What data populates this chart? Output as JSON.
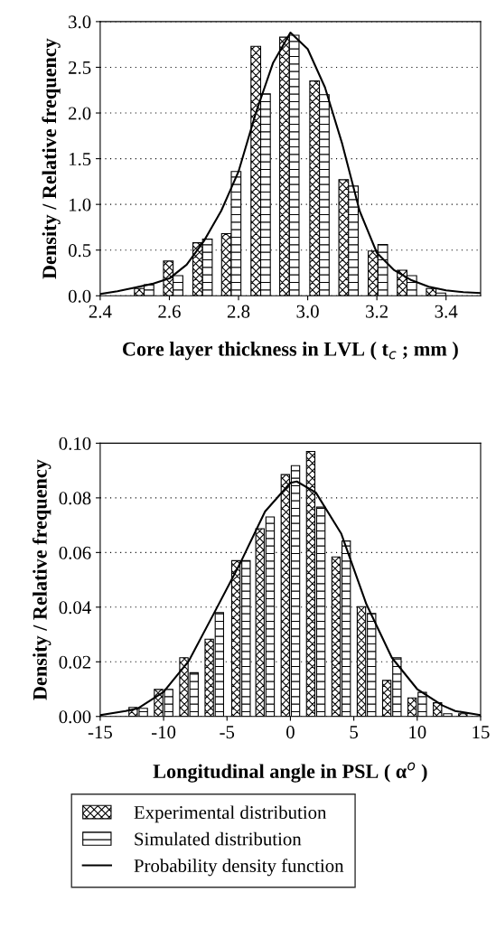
{
  "chart_data": [
    {
      "type": "bar",
      "xlabel": "Core layer thickness in LVL ( t$_{c}$ ; mm )",
      "ylabel": "Density / Relative frequency",
      "xlim": [
        2.4,
        3.5
      ],
      "xticks": [
        {
          "value": 2.4,
          "label": "2.4"
        },
        {
          "value": 2.6,
          "label": "2.6"
        },
        {
          "value": 2.8,
          "label": "2.8"
        },
        {
          "value": 3.0,
          "label": "3.0"
        },
        {
          "value": 3.2,
          "label": "3.2"
        },
        {
          "value": 3.4,
          "label": "3.4"
        }
      ],
      "ylim": [
        0,
        3.0
      ],
      "yticks": [
        {
          "value": 0,
          "label": "0.0"
        },
        {
          "value": 0.5,
          "label": "0.5"
        },
        {
          "value": 1.0,
          "label": "1.0"
        },
        {
          "value": 1.5,
          "label": "1.5"
        },
        {
          "value": 2.0,
          "label": "2.0"
        },
        {
          "value": 2.5,
          "label": "2.5"
        },
        {
          "value": 3.0,
          "label": "3.0"
        }
      ],
      "grid": "y",
      "series": [
        {
          "color": "#000000",
          "x": [
            2.513,
            2.597,
            2.682,
            2.765,
            2.85,
            2.933,
            3.02,
            3.104,
            3.189,
            3.273,
            3.357
          ],
          "values": [
            0.08,
            0.38,
            0.58,
            0.68,
            2.73,
            2.83,
            2.35,
            1.27,
            0.49,
            0.28,
            0.08
          ]
        },
        {
          "color": "#000000",
          "x": [
            2.541,
            2.625,
            2.71,
            2.793,
            2.878,
            2.961,
            3.048,
            3.132,
            3.217,
            3.301,
            3.385
          ],
          "values": [
            0.12,
            0.22,
            0.62,
            1.36,
            2.21,
            2.85,
            2.2,
            1.2,
            0.56,
            0.22,
            0.03
          ]
        },
        {
          "type": "line",
          "color": "#000000",
          "x": [
            2.4,
            2.45,
            2.5,
            2.55,
            2.6,
            2.65,
            2.7,
            2.75,
            2.8,
            2.85,
            2.9,
            2.95,
            3.0,
            3.05,
            3.1,
            3.15,
            3.2,
            3.25,
            3.3,
            3.35,
            3.4,
            3.45,
            3.5
          ],
          "values": [
            0.02,
            0.05,
            0.09,
            0.13,
            0.19,
            0.34,
            0.6,
            0.93,
            1.36,
            2.0,
            2.55,
            2.88,
            2.7,
            2.28,
            1.66,
            0.93,
            0.47,
            0.28,
            0.17,
            0.1,
            0.06,
            0.04,
            0.03
          ]
        }
      ]
    },
    {
      "type": "bar",
      "xlabel": "Longitudinal angle in PSL ( α$^{o}$ )",
      "ylabel": "Density / Relative frequency",
      "xlim": [
        -15,
        15
      ],
      "xticks": [
        -15,
        -10,
        -5,
        0,
        5,
        10,
        15
      ],
      "ylim": [
        0,
        0.1
      ],
      "yticks": [
        {
          "value": 0,
          "label": "0.00"
        },
        {
          "value": 0.02,
          "label": "0.02"
        },
        {
          "value": 0.04,
          "label": "0.04"
        },
        {
          "value": 0.06,
          "label": "0.06"
        },
        {
          "value": 0.08,
          "label": "0.08"
        },
        {
          "value": 0.1,
          "label": "0.10"
        }
      ],
      "grid": "y",
      "legend": "bottom",
      "series": [
        {
          "name": "Experimental distribution",
          "color": "#000000",
          "x": [
            -12.4,
            -10.4,
            -8.4,
            -6.4,
            -4.3,
            -2.4,
            -0.4,
            1.6,
            3.6,
            5.6,
            7.6,
            9.6,
            11.6,
            13.6
          ],
          "values": [
            0.0033,
            0.0099,
            0.0215,
            0.0283,
            0.057,
            0.0687,
            0.0885,
            0.097,
            0.0584,
            0.0402,
            0.0132,
            0.0068,
            0.005,
            0.001
          ]
        },
        {
          "name": "Simulated distribution",
          "color": "#000000",
          "x": [
            -11.6,
            -9.6,
            -7.6,
            -5.6,
            -3.5,
            -1.6,
            0.4,
            2.4,
            4.4,
            6.4,
            8.4,
            10.4,
            12.4
          ],
          "values": [
            0.003,
            0.0099,
            0.016,
            0.038,
            0.057,
            0.073,
            0.0918,
            0.0766,
            0.0642,
            0.0377,
            0.0215,
            0.0088,
            0.001
          ]
        },
        {
          "type": "line",
          "name": "Probability density function",
          "color": "#000000",
          "x": [
            -15,
            -13,
            -12,
            -10,
            -8,
            -6,
            -4,
            -2,
            0,
            0.5,
            2,
            4,
            6,
            8,
            10,
            12,
            13,
            15
          ],
          "values": [
            0.0005,
            0.002,
            0.003,
            0.009,
            0.0204,
            0.038,
            0.0557,
            0.075,
            0.0855,
            0.086,
            0.082,
            0.067,
            0.041,
            0.0215,
            0.01,
            0.004,
            0.002,
            0.0005
          ]
        }
      ]
    }
  ]
}
